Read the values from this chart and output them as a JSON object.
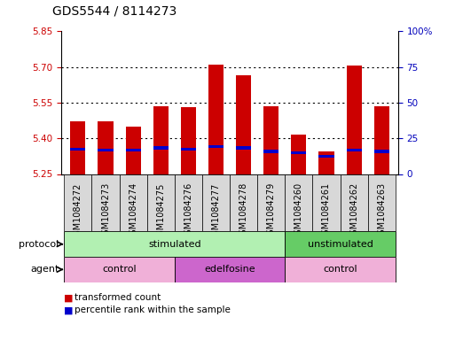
{
  "title": "GDS5544 / 8114273",
  "samples": [
    "GSM1084272",
    "GSM1084273",
    "GSM1084274",
    "GSM1084275",
    "GSM1084276",
    "GSM1084277",
    "GSM1084278",
    "GSM1084279",
    "GSM1084260",
    "GSM1084261",
    "GSM1084262",
    "GSM1084263"
  ],
  "bar_tops": [
    5.47,
    5.47,
    5.45,
    5.535,
    5.53,
    5.71,
    5.665,
    5.535,
    5.415,
    5.345,
    5.705,
    5.535
  ],
  "blue_positions": [
    5.355,
    5.35,
    5.35,
    5.36,
    5.355,
    5.365,
    5.36,
    5.345,
    5.34,
    5.325,
    5.35,
    5.345
  ],
  "bar_bottom": 5.25,
  "ylim_left": [
    5.25,
    5.85
  ],
  "yticks_left": [
    5.25,
    5.4,
    5.55,
    5.7,
    5.85
  ],
  "ylim_right": [
    0,
    100
  ],
  "yticks_right": [
    0,
    25,
    50,
    75,
    100
  ],
  "ytick_labels_right": [
    "0",
    "25",
    "50",
    "75",
    "100%"
  ],
  "bar_color": "#cc0000",
  "blue_color": "#0000cc",
  "bar_width": 0.55,
  "protocol_color_light": "#b2f0b2",
  "protocol_color_dark": "#66cc66",
  "agent_color_control": "#f0b0d8",
  "agent_color_edelfosine": "#cc66cc",
  "left_label_color": "#cc0000",
  "right_label_color": "#0000bb",
  "title_fontsize": 10,
  "tick_fontsize": 7.5,
  "annot_fontsize": 8,
  "legend_fontsize": 7.5
}
